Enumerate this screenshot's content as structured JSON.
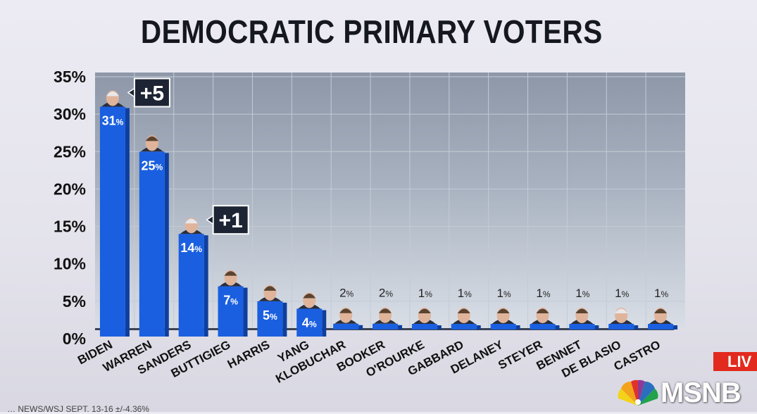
{
  "title": "DEMOCRATIC PRIMARY VOTERS",
  "chart_data": {
    "type": "bar",
    "title": "DEMOCRATIC PRIMARY VOTERS",
    "xlabel": "",
    "ylabel": "",
    "ylim": [
      0,
      35
    ],
    "yticks": [
      "0%",
      "5%",
      "10%",
      "15%",
      "20%",
      "25%",
      "30%",
      "35%"
    ],
    "grid": true,
    "categories": [
      "BIDEN",
      "WARREN",
      "SANDERS",
      "BUTTIGIEG",
      "HARRIS",
      "YANG",
      "KLOBUCHAR",
      "BOOKER",
      "O'ROURKE",
      "GABBARD",
      "DELANEY",
      "STEYER",
      "BENNET",
      "DE BLASIO",
      "CASTRO"
    ],
    "values": [
      31,
      25,
      14,
      7,
      5,
      4,
      2,
      2,
      1,
      1,
      1,
      1,
      1,
      1,
      1
    ],
    "value_labels": [
      "31",
      "25",
      "14",
      "7",
      "5",
      "4",
      "2",
      "2",
      "1",
      "1",
      "1",
      "1",
      "1",
      "1",
      "1"
    ],
    "value_suffix": "%",
    "changes": [
      {
        "category": "BIDEN",
        "label": "+5"
      },
      {
        "category": "SANDERS",
        "label": "+1"
      }
    ],
    "bar_color": "#1a5fe0"
  },
  "overlay": {
    "live_label": "LIV",
    "network_label": "MSNB",
    "footer_text": "… NEWS/WSJ SEPT. 13-16 ±/-4.36%"
  },
  "icons": [
    "candidate-photo-icon",
    "nbc-peacock-icon"
  ]
}
